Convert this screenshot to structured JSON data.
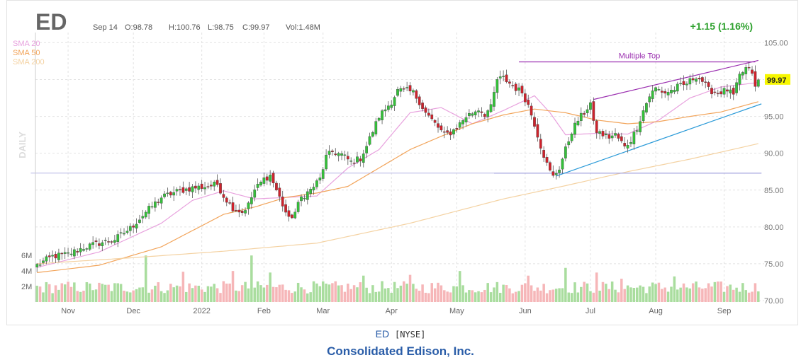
{
  "header": {
    "ticker": "ED",
    "date": "Sep 14",
    "open": "O:98.78",
    "high": "H:100.76",
    "low": "L:98.75",
    "close": "C:99.97",
    "volume": "Vol:1.48M",
    "change": "+1.15 (1.16%)"
  },
  "legend": [
    {
      "label": "SMA 20",
      "color": "#e8a2de"
    },
    {
      "label": "SMA 50",
      "color": "#f2a45a"
    },
    {
      "label": "SMA 200",
      "color": "#f4d2a2"
    }
  ],
  "watermark": "DAILY",
  "last_price_label": "99.97",
  "annotation": "Multiple Top",
  "footer": {
    "symbol": "ED",
    "exchange": "[NYSE]",
    "company": "Consolidated Edison, Inc."
  },
  "colors": {
    "up": "#34c23a",
    "down": "#d0222c",
    "vol_up": "#a9dd9e",
    "vol_down": "#f6b6b8",
    "support": "#7b7bd0",
    "pattern_top": "#9b2fb0",
    "trend_low": "#2a9ad8",
    "last_price_bg": "#f7f700"
  },
  "chart_data": {
    "type": "candlestick",
    "title": "ED",
    "period": "DAILY",
    "ylim": [
      70,
      106
    ],
    "y_ticks": [
      "105.00",
      "100.00",
      "95.00",
      "90.00",
      "85.00",
      "80.00",
      "75.00",
      "70.00"
    ],
    "volume_ticks": [
      "6M",
      "4M",
      "2M"
    ],
    "x_ticks": [
      "Nov",
      "Dec",
      "2022",
      "Feb",
      "Mar",
      "Apr",
      "May",
      "Jun",
      "Jul",
      "Aug",
      "Sep"
    ],
    "x_tick_index": [
      10,
      31,
      53,
      73,
      92,
      114,
      135,
      157,
      178,
      199,
      221
    ],
    "total_bars": 233,
    "close_anchors": [
      [
        0,
        74.8
      ],
      [
        5,
        76.0
      ],
      [
        10,
        76.3
      ],
      [
        15,
        77.2
      ],
      [
        20,
        77.8
      ],
      [
        25,
        78.3
      ],
      [
        30,
        79.8
      ],
      [
        35,
        82.0
      ],
      [
        40,
        84.0
      ],
      [
        45,
        84.8
      ],
      [
        50,
        85.3
      ],
      [
        55,
        85.5
      ],
      [
        58,
        85.8
      ],
      [
        60,
        84.2
      ],
      [
        63,
        82.6
      ],
      [
        66,
        82.0
      ],
      [
        68,
        83.0
      ],
      [
        70,
        85.0
      ],
      [
        73,
        86.5
      ],
      [
        75,
        87.0
      ],
      [
        77,
        85.0
      ],
      [
        79,
        83.0
      ],
      [
        81,
        81.0
      ],
      [
        83,
        82.0
      ],
      [
        85,
        84.0
      ],
      [
        88,
        85.0
      ],
      [
        91,
        86.5
      ],
      [
        93,
        89.5
      ],
      [
        95,
        90.2
      ],
      [
        98,
        89.8
      ],
      [
        101,
        88.8
      ],
      [
        104,
        89.3
      ],
      [
        106,
        91.0
      ],
      [
        108,
        93.0
      ],
      [
        110,
        95.0
      ],
      [
        112,
        96.0
      ],
      [
        114,
        97.0
      ],
      [
        116,
        98.5
      ],
      [
        119,
        98.5
      ],
      [
        121,
        98.2
      ],
      [
        123,
        97.0
      ],
      [
        125,
        95.5
      ],
      [
        127,
        94.5
      ],
      [
        129,
        93.5
      ],
      [
        131,
        92.5
      ],
      [
        133,
        92.8
      ],
      [
        135,
        93.5
      ],
      [
        138,
        95.0
      ],
      [
        140,
        95.5
      ],
      [
        142,
        96.0
      ],
      [
        144,
        95.3
      ],
      [
        146,
        96.2
      ],
      [
        148,
        100.0
      ],
      [
        150,
        100.2
      ],
      [
        152,
        99.5
      ],
      [
        154,
        98.8
      ],
      [
        156,
        98.3
      ],
      [
        158,
        96.5
      ],
      [
        160,
        94.0
      ],
      [
        162,
        91.0
      ],
      [
        164,
        88.5
      ],
      [
        165,
        87.5
      ],
      [
        166,
        86.8
      ],
      [
        168,
        88.0
      ],
      [
        170,
        90.5
      ],
      [
        172,
        93.0
      ],
      [
        174,
        94.5
      ],
      [
        176,
        95.5
      ],
      [
        178,
        96.8
      ],
      [
        179,
        94.0
      ],
      [
        180,
        93.0
      ],
      [
        182,
        92.5
      ],
      [
        184,
        92.2
      ],
      [
        186,
        92.5
      ],
      [
        188,
        91.5
      ],
      [
        189,
        90.8
      ],
      [
        191,
        91.8
      ],
      [
        193,
        93.5
      ],
      [
        195,
        95.8
      ],
      [
        197,
        97.8
      ],
      [
        199,
        98.8
      ],
      [
        202,
        98.2
      ],
      [
        204,
        98.5
      ],
      [
        206,
        99.0
      ],
      [
        208,
        99.2
      ],
      [
        210,
        99.8
      ],
      [
        212,
        100.5
      ],
      [
        214,
        99.8
      ],
      [
        216,
        98.6
      ],
      [
        219,
        98.2
      ],
      [
        222,
        98.6
      ],
      [
        224,
        97.8
      ],
      [
        226,
        100.5
      ],
      [
        228,
        101.5
      ],
      [
        230,
        101.0
      ],
      [
        231,
        98.8
      ],
      [
        232,
        99.97
      ]
    ],
    "series": [
      {
        "name": "SMA 20",
        "points": [
          [
            0,
            74.5
          ],
          [
            20,
            76.6
          ],
          [
            40,
            80.5
          ],
          [
            50,
            83.6
          ],
          [
            60,
            84.9
          ],
          [
            70,
            83.8
          ],
          [
            80,
            84.0
          ],
          [
            90,
            84.2
          ],
          [
            100,
            88.0
          ],
          [
            110,
            90.5
          ],
          [
            120,
            95.5
          ],
          [
            130,
            96.2
          ],
          [
            140,
            94.0
          ],
          [
            150,
            95.8
          ],
          [
            160,
            97.8
          ],
          [
            165,
            95.5
          ],
          [
            170,
            92.5
          ],
          [
            180,
            92.7
          ],
          [
            190,
            92.6
          ],
          [
            200,
            94.5
          ],
          [
            210,
            97.5
          ],
          [
            220,
            99.0
          ],
          [
            232,
            99.6
          ]
        ]
      },
      {
        "name": "SMA 50",
        "points": [
          [
            0,
            73.8
          ],
          [
            20,
            74.8
          ],
          [
            40,
            77.3
          ],
          [
            50,
            79.5
          ],
          [
            60,
            81.7
          ],
          [
            70,
            82.7
          ],
          [
            80,
            84.0
          ],
          [
            90,
            84.6
          ],
          [
            100,
            85.5
          ],
          [
            110,
            88.0
          ],
          [
            120,
            90.5
          ],
          [
            130,
            92.3
          ],
          [
            140,
            94.0
          ],
          [
            150,
            95.2
          ],
          [
            160,
            96.0
          ],
          [
            170,
            95.5
          ],
          [
            180,
            94.5
          ],
          [
            190,
            94.0
          ],
          [
            200,
            94.3
          ],
          [
            210,
            95.0
          ],
          [
            220,
            95.6
          ],
          [
            232,
            97.0
          ]
        ]
      },
      {
        "name": "SMA 200",
        "points": [
          [
            0,
            75.0
          ],
          [
            30,
            75.8
          ],
          [
            60,
            76.7
          ],
          [
            90,
            77.8
          ],
          [
            120,
            80.5
          ],
          [
            150,
            83.8
          ],
          [
            170,
            85.6
          ],
          [
            190,
            87.5
          ],
          [
            210,
            89.2
          ],
          [
            232,
            91.3
          ]
        ]
      }
    ],
    "trendlines": [
      {
        "kind": "support",
        "points": [
          [
            147,
            87.3
          ],
          [
            233,
            87.3
          ]
        ]
      },
      {
        "kind": "support-extended",
        "points": [
          [
            -2,
            87.3
          ],
          [
            233,
            87.3
          ]
        ]
      },
      {
        "kind": "multiple-top",
        "points": [
          [
            155,
            102.4
          ],
          [
            231,
            102.4
          ]
        ]
      },
      {
        "kind": "rising-top",
        "points": [
          [
            179,
            97.3
          ],
          [
            232,
            102.6
          ]
        ]
      },
      {
        "kind": "rising-bottom",
        "points": [
          [
            167,
            86.9
          ],
          [
            233,
            96.7
          ]
        ]
      }
    ],
    "volume_spikes": [
      [
        35,
        6.0
      ],
      [
        47,
        3.9
      ],
      [
        63,
        4.0
      ],
      [
        69,
        6.0
      ],
      [
        75,
        3.8
      ],
      [
        105,
        3.4
      ],
      [
        120,
        3.5
      ],
      [
        136,
        4.0
      ],
      [
        158,
        3.4
      ],
      [
        170,
        4.4
      ],
      [
        180,
        3.8
      ],
      [
        188,
        3.0
      ],
      [
        205,
        3.3
      ]
    ]
  }
}
